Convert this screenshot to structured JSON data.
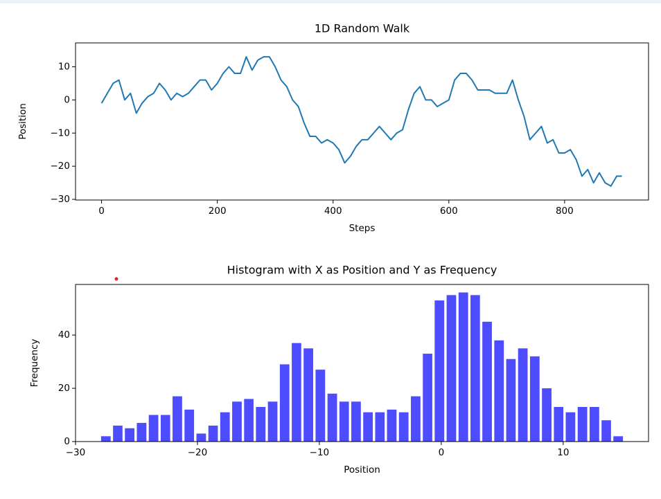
{
  "chart_data": [
    {
      "type": "line",
      "title": "1D Random Walk",
      "xlabel": "Steps",
      "ylabel": "Position",
      "x": [
        0,
        10,
        20,
        30,
        40,
        50,
        60,
        70,
        80,
        90,
        100,
        110,
        120,
        130,
        140,
        150,
        160,
        170,
        180,
        190,
        200,
        210,
        220,
        230,
        240,
        250,
        260,
        270,
        280,
        290,
        300,
        310,
        320,
        330,
        340,
        350,
        360,
        370,
        380,
        390,
        400,
        410,
        420,
        430,
        440,
        450,
        460,
        470,
        480,
        490,
        500,
        510,
        520,
        530,
        540,
        550,
        560,
        570,
        580,
        590,
        600,
        610,
        620,
        630,
        640,
        650,
        660,
        670,
        680,
        690,
        700,
        710,
        720,
        730,
        740,
        750,
        760,
        770,
        780,
        790,
        800,
        810,
        820,
        830,
        840,
        850,
        860,
        870,
        880,
        890,
        899
      ],
      "series": [
        {
          "name": "Position",
          "color": "#1f77b4",
          "values": [
            -1,
            2,
            5,
            6,
            0,
            2,
            -4,
            -1,
            1,
            2,
            5,
            3,
            0,
            2,
            1,
            2,
            4,
            6,
            6,
            3,
            5,
            8,
            10,
            8,
            8,
            13,
            9,
            12,
            13,
            13,
            10,
            6,
            4,
            0,
            -2,
            -7,
            -11,
            -11,
            -13,
            -12,
            -13,
            -15,
            -19,
            -17,
            -14,
            -12,
            -12,
            -10,
            -8,
            -10,
            -12,
            -10,
            -9,
            -3,
            2,
            4,
            0,
            0,
            -2,
            -1,
            0,
            6,
            8,
            8,
            6,
            3,
            3,
            3,
            2,
            2,
            2,
            6,
            0,
            -5,
            -12,
            -10,
            -8,
            -13,
            -12,
            -16,
            -16,
            -15,
            -18,
            -23,
            -21,
            -25,
            -22,
            -25,
            -26,
            -23,
            -23
          ]
        }
      ],
      "xlim": [
        -45,
        945
      ],
      "ylim": [
        -30.2,
        17.2
      ],
      "xticks": [
        0,
        200,
        400,
        600,
        800
      ],
      "yticks": [
        {
          "value": -30,
          "label": "−30"
        },
        {
          "value": -20,
          "label": "−20"
        },
        {
          "value": -10,
          "label": "−10"
        },
        0,
        10
      ]
    },
    {
      "type": "histogram",
      "title": "Histogram with X as Position and Y as Frequency",
      "xlabel": "Position",
      "ylabel": "Frequency",
      "bins": [
        -28,
        -27.02,
        -26.05,
        -25.07,
        -24.09,
        -23.11,
        -22.14,
        -21.16,
        -20.18,
        -19.2,
        -18.23,
        -17.25,
        -16.27,
        -15.3,
        -14.32,
        -13.34,
        -12.36,
        -11.39,
        -10.41,
        -9.43,
        -8.45,
        -7.48,
        -6.5,
        -5.52,
        -4.55,
        -3.57,
        -2.59,
        -1.61,
        -0.64,
        0.34,
        1.32,
        2.3,
        3.27,
        4.25,
        5.23,
        6.2,
        7.18,
        8.16,
        9.14,
        10.11,
        11.09,
        12.07,
        13.05,
        14.02,
        15
      ],
      "values": [
        2,
        6,
        5,
        7,
        10,
        10,
        17,
        12,
        3,
        6,
        11,
        15,
        16,
        13,
        15,
        29,
        37,
        35,
        27,
        18,
        15,
        15,
        11,
        11,
        12,
        11,
        17,
        33,
        53,
        55,
        56,
        55,
        45,
        38,
        31,
        35,
        32,
        20,
        13,
        11,
        13,
        13,
        8,
        2
      ],
      "color": "#4d4dff",
      "rwidth": 0.8,
      "xlim": [
        -30,
        17
      ],
      "ylim": [
        0,
        59
      ],
      "xticks": [
        {
          "value": -30,
          "label": "−30"
        },
        {
          "value": -20,
          "label": "−20"
        },
        {
          "value": -10,
          "label": "−10"
        },
        0,
        10
      ],
      "yticks": [
        0,
        20,
        40
      ]
    }
  ]
}
